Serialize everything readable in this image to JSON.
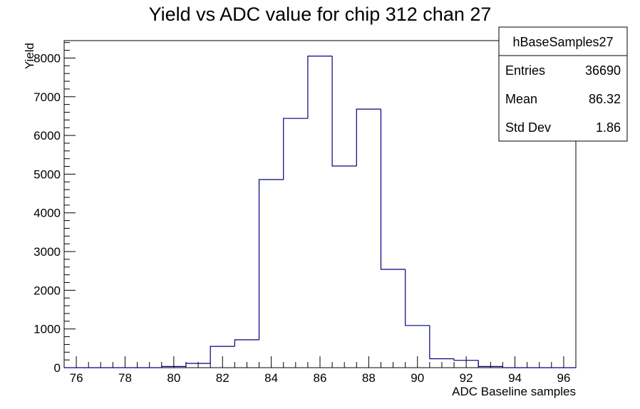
{
  "chart_data": {
    "type": "histogram",
    "title": "Yield vs ADC value for chip 312 chan 27",
    "xlabel": "ADC Baseline samples",
    "ylabel": "Yield",
    "xlim": [
      75.5,
      96.5
    ],
    "ylim": [
      0,
      8450
    ],
    "x_ticks": [
      "76",
      "78",
      "80",
      "82",
      "84",
      "86",
      "88",
      "90",
      "92",
      "94",
      "96"
    ],
    "y_ticks": [
      "0",
      "1000",
      "2000",
      "3000",
      "4000",
      "5000",
      "6000",
      "7000",
      "8000"
    ],
    "bin_edges": [
      75.5,
      76.5,
      77.5,
      78.5,
      79.5,
      80.5,
      81.5,
      82.5,
      83.5,
      84.5,
      85.5,
      86.5,
      87.5,
      88.5,
      89.5,
      90.5,
      91.5,
      92.5,
      93.5,
      94.5,
      95.5,
      96.5
    ],
    "values": [
      0,
      0,
      0,
      0,
      30,
      110,
      550,
      720,
      4860,
      6440,
      8050,
      5210,
      6680,
      2540,
      1090,
      230,
      190,
      30,
      0,
      0,
      0
    ],
    "line_color": "#00007f",
    "grid": false,
    "stats_box": {
      "name": "hBaseSamples27",
      "placement": "top-right",
      "rows": [
        {
          "label": "Entries",
          "value": "36690"
        },
        {
          "label": "Mean",
          "value": "86.32"
        },
        {
          "label": "Std Dev",
          "value": "1.86"
        }
      ]
    }
  }
}
